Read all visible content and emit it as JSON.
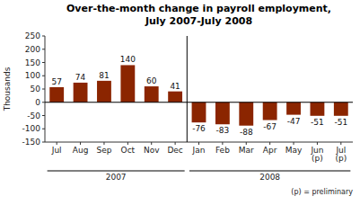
{
  "chart_data": {
    "type": "bar",
    "title": "Over-the-month change in payroll employment,",
    "subtitle": "July 2007-July 2008",
    "y_label": "Thousands",
    "categories": [
      "Jul",
      "Aug",
      "Sep",
      "Oct",
      "Nov",
      "Dec",
      "Jan",
      "Feb",
      "Mar",
      "Apr",
      "May",
      "Jun\n(p)",
      "Jul\n(p)"
    ],
    "values": [
      57,
      74,
      81,
      140,
      60,
      41,
      -76,
      -83,
      -88,
      -67,
      -47,
      -51,
      -51
    ],
    "color": "#8B2500",
    "ylim": [
      -150,
      250
    ],
    "yticks": [
      -150,
      -100,
      -50,
      0,
      50,
      100,
      150,
      200,
      250
    ],
    "annotations": [
      "2007",
      "2008",
      "(p) = preliminary"
    ],
    "data_labels": true,
    "grid": false
  }
}
